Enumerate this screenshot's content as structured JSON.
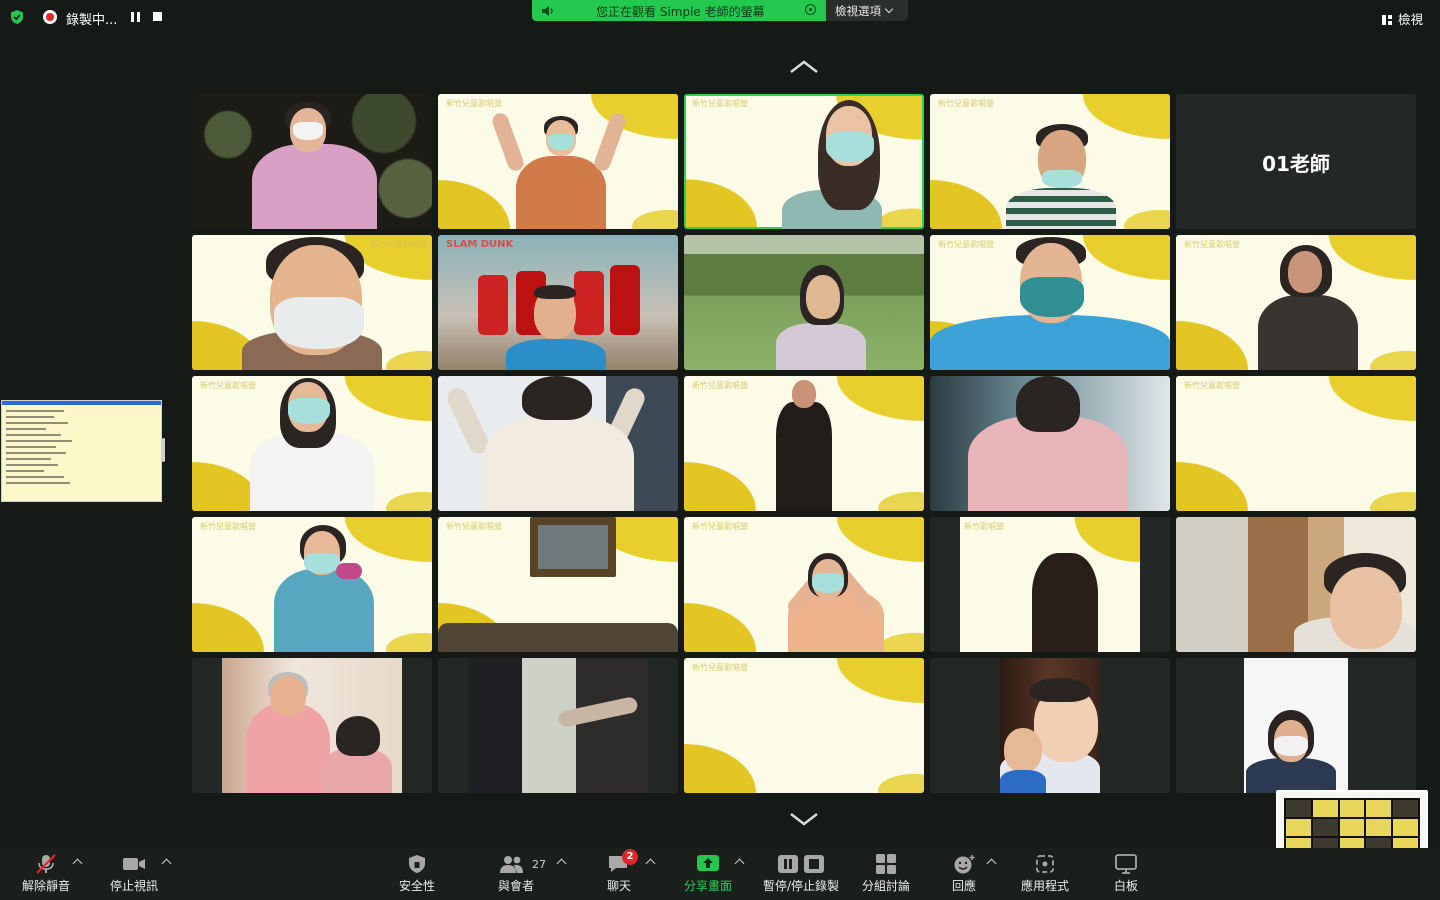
{
  "topbar": {
    "recording_label": "錄製中...",
    "share_banner_text": "您正在觀看 Simple 老師的螢幕",
    "view_options_label": "檢視選項",
    "view_label": "檢視"
  },
  "gallery": {
    "tiles": [
      {
        "bg": "night"
      },
      {
        "bg": "yellow",
        "title": "新竹兒童歌唱營"
      },
      {
        "bg": "yellow",
        "title": "新竹兒童歌唱營",
        "active": true
      },
      {
        "bg": "yellow",
        "title": "新竹兒童歌唱營"
      },
      {
        "bg": "name",
        "name": "01老師"
      },
      {
        "bg": "yellow",
        "title": "新竹兒童歌唱營"
      },
      {
        "bg": "poster",
        "title": "SLAM DUNK"
      },
      {
        "bg": "field"
      },
      {
        "bg": "yellow",
        "title": "新竹兒童歌唱營"
      },
      {
        "bg": "yellow",
        "title": "新竹兒童歌唱營"
      },
      {
        "bg": "yellow",
        "title": "新竹兒童歌唱營"
      },
      {
        "bg": "room"
      },
      {
        "bg": "yellow",
        "title": "新竹兒童歌唱營"
      },
      {
        "bg": "room2"
      },
      {
        "bg": "yellow",
        "title": "新竹兒童歌唱營"
      },
      {
        "bg": "yellow",
        "title": "新竹兒童歌唱營"
      },
      {
        "bg": "yellow",
        "title": "新竹兒童歌唱營"
      },
      {
        "bg": "yellow",
        "title": "新竹兒童歌唱營"
      },
      {
        "bg": "yellow-narrow",
        "title": "新竹歌唱營"
      },
      {
        "bg": "shelf"
      },
      {
        "bg": "room-narrow"
      },
      {
        "bg": "dark-narrow"
      },
      {
        "bg": "yellow",
        "title": "新竹兒童歌唱營"
      },
      {
        "bg": "baby-narrow"
      },
      {
        "bg": "white-narrow"
      }
    ]
  },
  "toolbar": {
    "unmute_label": "解除靜音",
    "stop_video_label": "停止視訊",
    "security_label": "安全性",
    "participants_label": "與會者",
    "participants_count": "27",
    "chat_label": "聊天",
    "chat_badge": "2",
    "share_label": "分享畫面",
    "record_label": "暫停/停止錄製",
    "breakout_label": "分組討論",
    "reactions_label": "回應",
    "apps_label": "應用程式",
    "whiteboard_label": "白板"
  },
  "colors": {
    "accent_green": "#23c84f",
    "recording_red": "#e22222",
    "badge_red": "#e0262b",
    "background": "#151a17"
  },
  "icons": [
    "shield-icon",
    "record-icon",
    "pause-icon",
    "stop-icon",
    "speaker-icon",
    "chevron-down-icon",
    "grid-view-icon",
    "chevron-up-icon",
    "microphone-muted-icon",
    "video-camera-icon",
    "security-shield-icon",
    "participants-icon",
    "chat-icon",
    "share-screen-icon",
    "record-pause-stop-icon",
    "breakout-rooms-icon",
    "reactions-icon",
    "apps-icon",
    "whiteboard-icon"
  ]
}
